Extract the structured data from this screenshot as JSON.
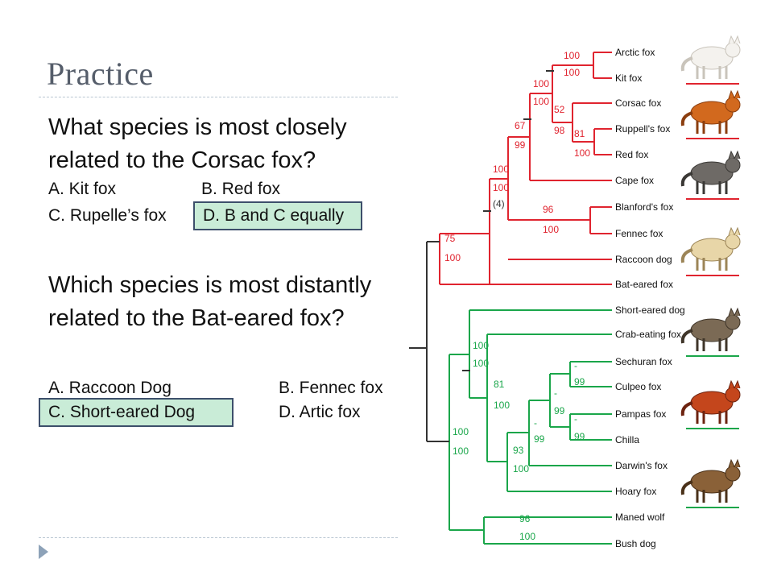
{
  "slide": {
    "title": "Practice",
    "question1": {
      "text": "What species is most closely related to the Corsac fox?",
      "options": {
        "a": "A. Kit fox",
        "b": "B. Red fox",
        "c": "C. Rupelle’s fox",
        "d": "D. B and C equally"
      },
      "highlighted": "d"
    },
    "question2": {
      "text": "Which species is most distantly related to the Bat-eared fox?",
      "options": {
        "a": "A. Raccoon Dog",
        "b": "B. Fennec fox",
        "c": "C. Short-eared Dog",
        "d": "D. Artic fox"
      },
      "highlighted": "c"
    }
  },
  "tree": {
    "colors": {
      "red_clade": "#e0242f",
      "green_clade": "#1aa64a",
      "root": "#333333"
    },
    "species": [
      "Arctic fox",
      "Kit fox",
      "Corsac fox",
      "Ruppell's fox",
      "Red fox",
      "Cape fox",
      "Blanford's fox",
      "Fennec fox",
      "Raccoon dog",
      "Bat-eared fox",
      "Short-eared dog",
      "Crab-eating fox",
      "Sechuran fox",
      "Culpeo fox",
      "Pampas fox",
      "Chilla",
      "Darwin's fox",
      "Hoary fox",
      "Maned wolf",
      "Bush dog"
    ],
    "node_labels": {
      "arctic_kit": [
        "100",
        "100"
      ],
      "corsac_group": [
        "52",
        "98"
      ],
      "ruppell_red": [
        "81",
        "100"
      ],
      "vulpes_core": [
        "100",
        "100"
      ],
      "vulpes_cape": [
        "67",
        "99"
      ],
      "vulpes_all": [
        "100",
        "100",
        "(4)"
      ],
      "blanford_fennec": [
        "96",
        "100"
      ],
      "red_clade": [
        "75",
        "100"
      ],
      "sa_top": [
        "100",
        "100"
      ],
      "sa_mid": [
        "81",
        "100"
      ],
      "sechuran_culpeo": [
        "-",
        "99"
      ],
      "pampas_chilla": [
        "-",
        "99"
      ],
      "four_fox": [
        "-",
        "99"
      ],
      "darwin_group": [
        "-",
        "99"
      ],
      "hoary_group": [
        "93",
        "100"
      ],
      "green_clade": [
        "100",
        "100"
      ],
      "maned_bush": [
        "96",
        "100"
      ]
    }
  }
}
